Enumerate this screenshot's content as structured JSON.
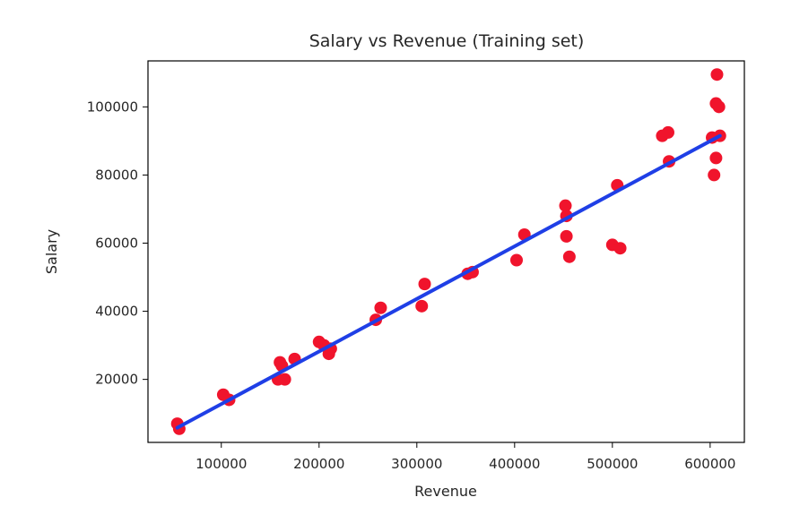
{
  "chart_data": {
    "type": "scatter",
    "title": "Salary vs Revenue (Training set)",
    "xlabel": "Revenue",
    "ylabel": "Salary",
    "xlim": [
      25000,
      635000
    ],
    "ylim": [
      1500,
      113500
    ],
    "xticks": [
      100000,
      200000,
      300000,
      400000,
      500000,
      600000
    ],
    "yticks": [
      20000,
      40000,
      60000,
      80000,
      100000
    ],
    "grid": false,
    "points_color": "#f0142c",
    "line_color": "#1f3fe6",
    "points": [
      {
        "x": 55000,
        "y": 7000
      },
      {
        "x": 57000,
        "y": 5500
      },
      {
        "x": 102000,
        "y": 15500
      },
      {
        "x": 108000,
        "y": 14000
      },
      {
        "x": 158000,
        "y": 20000
      },
      {
        "x": 160000,
        "y": 25000
      },
      {
        "x": 162000,
        "y": 24000
      },
      {
        "x": 165000,
        "y": 20000
      },
      {
        "x": 175000,
        "y": 26000
      },
      {
        "x": 200000,
        "y": 31000
      },
      {
        "x": 205000,
        "y": 30000
      },
      {
        "x": 210000,
        "y": 27500
      },
      {
        "x": 212000,
        "y": 29000
      },
      {
        "x": 258000,
        "y": 37500
      },
      {
        "x": 263000,
        "y": 41000
      },
      {
        "x": 305000,
        "y": 41500
      },
      {
        "x": 308000,
        "y": 48000
      },
      {
        "x": 352000,
        "y": 51000
      },
      {
        "x": 357000,
        "y": 51500
      },
      {
        "x": 402000,
        "y": 55000
      },
      {
        "x": 410000,
        "y": 62500
      },
      {
        "x": 452000,
        "y": 71000
      },
      {
        "x": 453000,
        "y": 68000
      },
      {
        "x": 453000,
        "y": 62000
      },
      {
        "x": 456000,
        "y": 56000
      },
      {
        "x": 500000,
        "y": 59500
      },
      {
        "x": 505000,
        "y": 77000
      },
      {
        "x": 508000,
        "y": 58500
      },
      {
        "x": 551000,
        "y": 91500
      },
      {
        "x": 557000,
        "y": 92500
      },
      {
        "x": 558000,
        "y": 84000
      },
      {
        "x": 602000,
        "y": 91000
      },
      {
        "x": 604000,
        "y": 80000
      },
      {
        "x": 606000,
        "y": 85000
      },
      {
        "x": 606000,
        "y": 101000
      },
      {
        "x": 607000,
        "y": 109500
      },
      {
        "x": 609000,
        "y": 100000
      },
      {
        "x": 610000,
        "y": 91500
      }
    ],
    "regression_line": {
      "x": [
        55000,
        610000
      ],
      "y": [
        5800,
        91500
      ]
    }
  }
}
